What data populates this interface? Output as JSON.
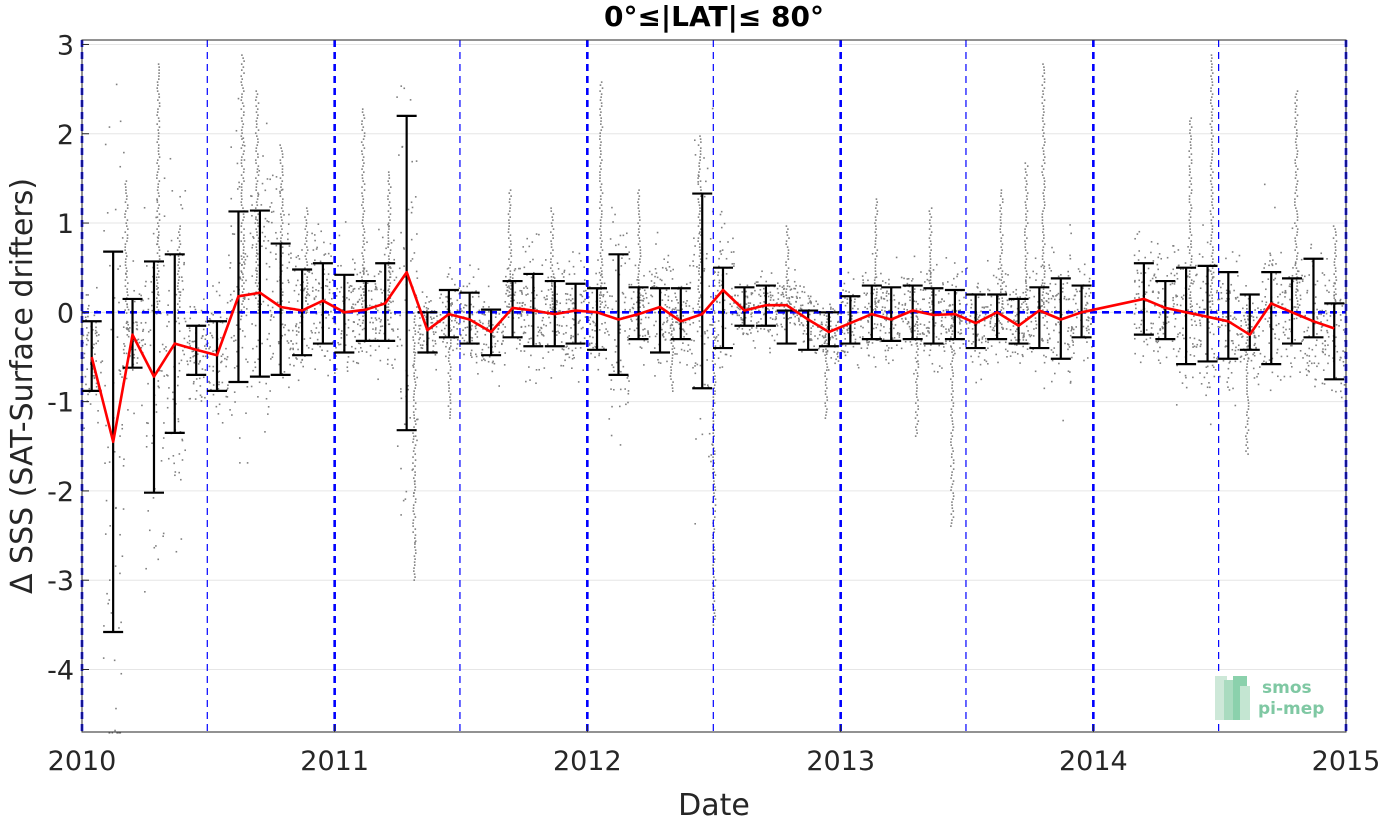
{
  "chart_data": {
    "type": "scatter",
    "title": "0°≤|LAT|≤ 80°",
    "xlabel": "Date",
    "ylabel": "Δ SSS (SAT-Surface drifters)",
    "xlim": [
      "2010-01-01",
      "2015-01-01"
    ],
    "ylim": [
      -4.7,
      3.05
    ],
    "x_ticks": [
      "2010",
      "2011",
      "2012",
      "2013",
      "2014",
      "2015"
    ],
    "y_ticks": [
      3,
      2,
      1,
      0,
      -1,
      -2,
      -3,
      -4
    ],
    "grid": true,
    "zero_line": {
      "y": 0,
      "style": "dashed",
      "color": "#0000ff"
    },
    "year_lines": [
      "2010-01-01",
      "2011-01-01",
      "2012-01-01",
      "2013-01-01",
      "2014-01-01",
      "2015-01-01"
    ],
    "half_year_lines": [
      "2010-07-01",
      "2011-07-01",
      "2012-07-01",
      "2013-07-01",
      "2014-07-01"
    ],
    "colors": {
      "mean": "#ff0000",
      "errorbar": "#000000",
      "points": "#808080",
      "reference": "#0000ff",
      "grid": "#e6e6e6"
    },
    "series": [
      {
        "style": "line+errorbar",
        "x": [
          "2010-01-15",
          "2010-02-15",
          "2010-03-15",
          "2010-04-15",
          "2010-05-15",
          "2010-06-15",
          "2010-07-15",
          "2010-08-15",
          "2010-09-15",
          "2010-10-15",
          "2010-11-15",
          "2010-12-15",
          "2011-01-15",
          "2011-02-15",
          "2011-03-15",
          "2011-04-15",
          "2011-05-15",
          "2011-06-15",
          "2011-07-15",
          "2011-08-15",
          "2011-09-15",
          "2011-10-15",
          "2011-11-15",
          "2011-12-15",
          "2012-01-15",
          "2012-02-15",
          "2012-03-15",
          "2012-04-15",
          "2012-05-15",
          "2012-06-15",
          "2012-07-15",
          "2012-08-15",
          "2012-09-15",
          "2012-10-15",
          "2012-11-15",
          "2012-12-15",
          "2013-01-15",
          "2013-02-15",
          "2013-03-15",
          "2013-04-15",
          "2013-05-15",
          "2013-06-15",
          "2013-07-15",
          "2013-08-15",
          "2013-09-15",
          "2013-10-15",
          "2013-11-15",
          "2013-12-15",
          "2014-03-15",
          "2014-04-15",
          "2014-05-15",
          "2014-06-15",
          "2014-07-15",
          "2014-08-15",
          "2014-09-15",
          "2014-10-15",
          "2014-11-15",
          "2014-12-15"
        ],
        "y": [
          -0.5,
          -1.45,
          -0.25,
          -0.72,
          -0.35,
          -0.42,
          -0.48,
          0.18,
          0.22,
          0.06,
          0.02,
          0.13,
          0.0,
          0.03,
          0.1,
          0.45,
          -0.2,
          -0.02,
          -0.08,
          -0.22,
          0.05,
          0.02,
          -0.02,
          0.02,
          0.0,
          -0.08,
          -0.02,
          0.06,
          -0.1,
          -0.02,
          0.25,
          0.02,
          0.08,
          0.08,
          -0.08,
          -0.22,
          -0.12,
          -0.02,
          -0.08,
          0.02,
          -0.03,
          -0.02,
          -0.12,
          0.0,
          -0.15,
          0.02,
          -0.08,
          0.0,
          0.15,
          0.05,
          0.0,
          -0.05,
          -0.1,
          -0.25,
          0.1,
          0.0,
          -0.1,
          -0.18
        ],
        "y_upper": [
          -0.1,
          0.68,
          0.15,
          0.57,
          0.65,
          -0.15,
          -0.1,
          1.13,
          1.14,
          0.77,
          0.48,
          0.55,
          0.42,
          0.35,
          0.55,
          2.2,
          0.0,
          0.25,
          0.22,
          0.03,
          0.35,
          0.43,
          0.35,
          0.32,
          0.27,
          0.65,
          0.28,
          0.27,
          0.27,
          1.33,
          0.5,
          0.28,
          0.3,
          0.02,
          0.02,
          0.0,
          0.18,
          0.3,
          0.28,
          0.3,
          0.27,
          0.25,
          0.2,
          0.2,
          0.15,
          0.28,
          0.38,
          0.3,
          0.55,
          0.35,
          0.5,
          0.52,
          0.45,
          0.2,
          0.45,
          0.38,
          0.6,
          0.1
        ],
        "y_lower": [
          -0.88,
          -3.58,
          -0.62,
          -2.02,
          -1.35,
          -0.7,
          -0.88,
          -0.78,
          -0.72,
          -0.7,
          -0.48,
          -0.35,
          -0.45,
          -0.32,
          -0.32,
          -1.32,
          -0.45,
          -0.28,
          -0.35,
          -0.48,
          -0.28,
          -0.38,
          -0.38,
          -0.35,
          -0.42,
          -0.7,
          -0.3,
          -0.45,
          -0.3,
          -0.85,
          -0.4,
          -0.15,
          -0.15,
          -0.35,
          -0.42,
          -0.38,
          -0.35,
          -0.3,
          -0.32,
          -0.3,
          -0.35,
          -0.3,
          -0.4,
          -0.3,
          -0.35,
          -0.4,
          -0.52,
          -0.28,
          -0.25,
          -0.3,
          -0.58,
          -0.55,
          -0.52,
          -0.42,
          -0.58,
          -0.35,
          -0.28,
          -0.75
        ]
      },
      {
        "style": "points",
        "x": [
          "2010-03-05",
          "2010-04-20",
          "2010-05-20",
          "2010-08-20",
          "2010-09-10",
          "2010-10-15",
          "2010-11-20",
          "2011-02-10",
          "2011-03-20",
          "2011-04-25",
          "2011-06-15",
          "2011-09-10",
          "2011-11-10",
          "2012-01-20",
          "2012-03-15",
          "2012-05-01",
          "2012-06-10",
          "2012-07-01",
          "2012-10-15",
          "2012-12-10",
          "2013-02-20",
          "2013-04-20",
          "2013-05-10",
          "2013-06-10",
          "2013-08-20",
          "2013-09-25",
          "2013-10-20",
          "2014-05-20",
          "2014-06-20",
          "2014-08-10",
          "2014-10-20",
          "2014-12-15"
        ],
        "y": [
          1.5,
          2.8,
          1.0,
          2.9,
          2.5,
          1.9,
          1.2,
          2.3,
          1.6,
          -3.0,
          -1.2,
          1.4,
          1.2,
          2.6,
          1.4,
          -0.9,
          2.0,
          -3.5,
          1.0,
          -1.2,
          1.3,
          -1.4,
          1.2,
          -2.4,
          1.4,
          1.7,
          2.8,
          2.2,
          2.9,
          -1.6,
          2.5,
          1.0
        ]
      }
    ]
  },
  "logo": {
    "line1": "smos",
    "line2": "pi-mep"
  }
}
